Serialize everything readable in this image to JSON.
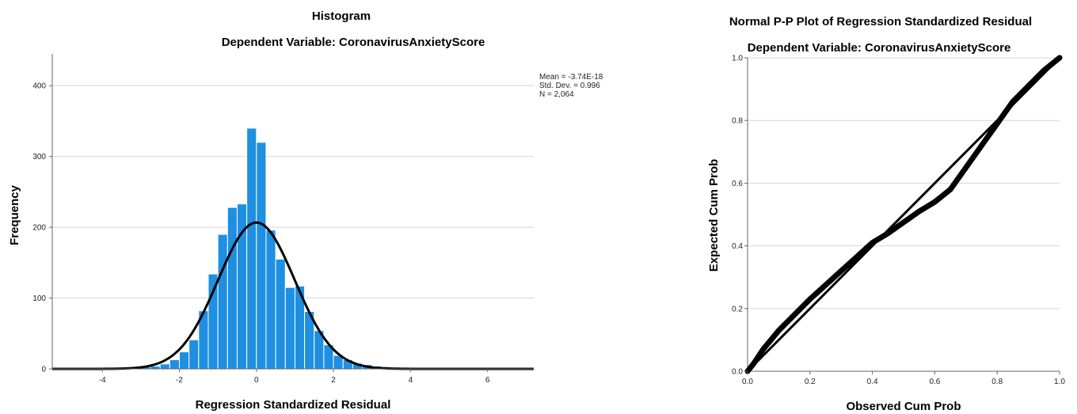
{
  "chart_data": [
    {
      "type": "bar",
      "title": "Histogram",
      "subtitle": "Dependent Variable: CoronavirusAnxietyScore",
      "xlabel": "Regression Standardized Residual",
      "ylabel": "Frequency",
      "xlim": [
        -5.3,
        7.2
      ],
      "ylim": [
        0,
        445
      ],
      "x_ticks": [
        "-4",
        "-2",
        "0",
        "2",
        "4",
        "6"
      ],
      "y_ticks": [
        "0",
        "100",
        "200",
        "300",
        "400"
      ],
      "grid": "horizontal",
      "bar_color": "#1e8fe1",
      "bin_width": 0.25,
      "bins": [
        {
          "x0": -3.25,
          "value": 1
        },
        {
          "x0": -3.0,
          "value": 3
        },
        {
          "x0": -2.75,
          "value": 4
        },
        {
          "x0": -2.5,
          "value": 7
        },
        {
          "x0": -2.25,
          "value": 13
        },
        {
          "x0": -2.0,
          "value": 24
        },
        {
          "x0": -1.75,
          "value": 41
        },
        {
          "x0": -1.5,
          "value": 82
        },
        {
          "x0": -1.25,
          "value": 134
        },
        {
          "x0": -1.0,
          "value": 190
        },
        {
          "x0": -0.75,
          "value": 228
        },
        {
          "x0": -0.5,
          "value": 233
        },
        {
          "x0": -0.25,
          "value": 340
        },
        {
          "x0": 0.0,
          "value": 320
        },
        {
          "x0": 0.25,
          "value": 196
        },
        {
          "x0": 0.5,
          "value": 155
        },
        {
          "x0": 0.75,
          "value": 115
        },
        {
          "x0": 1.0,
          "value": 117
        },
        {
          "x0": 1.25,
          "value": 81
        },
        {
          "x0": 1.5,
          "value": 54
        },
        {
          "x0": 1.75,
          "value": 34
        },
        {
          "x0": 2.0,
          "value": 19
        },
        {
          "x0": 2.25,
          "value": 13
        },
        {
          "x0": 2.5,
          "value": 8
        },
        {
          "x0": 2.75,
          "value": 6
        },
        {
          "x0": 3.0,
          "value": 4
        },
        {
          "x0": 3.25,
          "value": 3
        },
        {
          "x0": 3.5,
          "value": 2
        },
        {
          "x0": 3.75,
          "value": 2
        },
        {
          "x0": 4.0,
          "value": 1
        },
        {
          "x0": 4.5,
          "value": 1
        }
      ],
      "normal_curve": {
        "mean": -3.74e-18,
        "sd": 0.996,
        "n": 2064
      },
      "stats": [
        "Mean = -3.74E-18",
        "Std. Dev. = 0.996",
        "N = 2,064"
      ]
    },
    {
      "type": "line",
      "title": "Normal P-P Plot of Regression Standardized Residual",
      "subtitle": "Dependent Variable: CoronavirusAnxietyScore",
      "xlabel": "Observed Cum Prob",
      "ylabel": "Expected Cum Prob",
      "xlim": [
        0,
        1
      ],
      "ylim": [
        0,
        1
      ],
      "x_ticks": [
        "0.0",
        "0.2",
        "0.4",
        "0.6",
        "0.8",
        "1.0"
      ],
      "y_ticks": [
        "0.0",
        "0.2",
        "0.4",
        "0.6",
        "0.8",
        "1.0"
      ],
      "grid": "horizontal",
      "series": [
        {
          "x": [
            0,
            0.02,
            0.05,
            0.1,
            0.15,
            0.2,
            0.25,
            0.3,
            0.35,
            0.4,
            0.45,
            0.5,
            0.55,
            0.6,
            0.65,
            0.7,
            0.75,
            0.8,
            0.85,
            0.9,
            0.95,
            1.0
          ],
          "y": [
            0,
            0.025,
            0.07,
            0.13,
            0.18,
            0.23,
            0.275,
            0.32,
            0.365,
            0.41,
            0.44,
            0.475,
            0.51,
            0.54,
            0.58,
            0.65,
            0.72,
            0.79,
            0.86,
            0.91,
            0.96,
            1.0
          ]
        },
        {
          "x": [
            0,
            1
          ],
          "y": [
            0,
            1
          ]
        }
      ]
    }
  ]
}
